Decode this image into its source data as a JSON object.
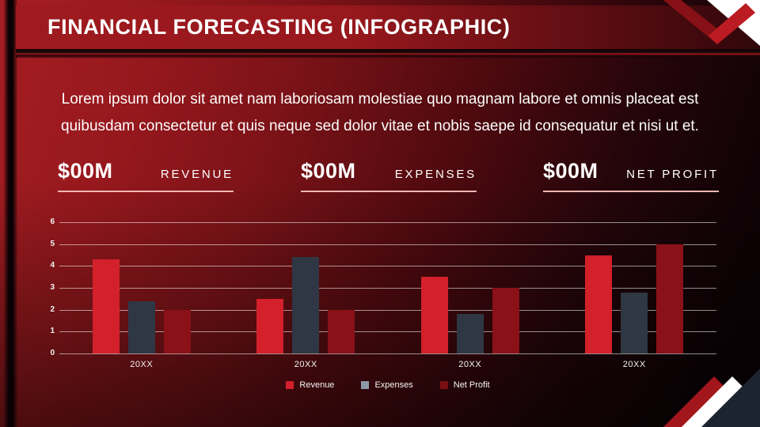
{
  "slide": {
    "title": "FINANCIAL FORECASTING (INFOGRAPHIC)",
    "body_text": "Lorem ipsum dolor sit amet nam laboriosam molestiae quo magnam labore et omnis placeat est quibusdam consectetur et quis neque sed dolor vitae et nobis saepe id consequatur et nisi ut et."
  },
  "stats": [
    {
      "value": "$00M",
      "label": "REVENUE"
    },
    {
      "value": "$00M",
      "label": "EXPENSES"
    },
    {
      "value": "$00M",
      "label": "NET PROFIT"
    }
  ],
  "colors": {
    "header_red": "#9e1a1f",
    "accent_red": "#d3202a",
    "dark_red": "#8a1118",
    "slate": "#2e3743",
    "legend_slate": "#8e99a8",
    "underline_pink": "#f2b7b2",
    "corner_navy": "#1b2430",
    "white": "#ffffff"
  },
  "chart_data": {
    "type": "bar",
    "categories": [
      "20XX",
      "20XX",
      "20XX",
      "20XX"
    ],
    "series": [
      {
        "name": "Revenue",
        "color": "#d3202a",
        "legend_color": "#d3202a",
        "values": [
          4.3,
          2.5,
          3.5,
          4.5
        ]
      },
      {
        "name": "Expenses",
        "color": "#2e3743",
        "legend_color": "#8e99a8",
        "values": [
          2.4,
          4.4,
          1.8,
          2.8
        ]
      },
      {
        "name": "Net Profit",
        "color": "#8a1118",
        "legend_color": "#7a1014",
        "values": [
          2.0,
          2.0,
          3.0,
          5.0
        ]
      }
    ],
    "title": "",
    "xlabel": "",
    "ylabel": "",
    "ylim": [
      0,
      6
    ],
    "yticks": [
      0,
      1,
      2,
      3,
      4,
      5,
      6
    ],
    "grid": true,
    "legend_position": "bottom"
  }
}
